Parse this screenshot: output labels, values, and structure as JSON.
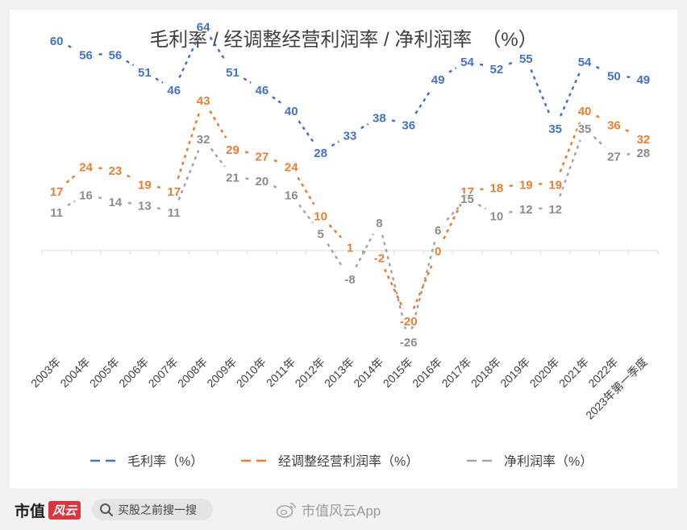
{
  "chart_data": {
    "type": "line",
    "title": "毛利率 / 经调整经营利润率 / 净利润率　（%）",
    "categories": [
      "2003年",
      "2004年",
      "2005年",
      "2006年",
      "2007年",
      "2008年",
      "2009年",
      "2010年",
      "2011年",
      "2012年",
      "2013年",
      "2014年",
      "2015年",
      "2016年",
      "2017年",
      "2018年",
      "2019年",
      "2020年",
      "2021年",
      "2022年",
      "2023年第一季度"
    ],
    "series": [
      {
        "name": "毛利率（%）",
        "color": "#4472c4",
        "values": [
          60,
          56,
          56,
          51,
          46,
          64,
          51,
          46,
          40,
          28,
          33,
          38,
          36,
          49,
          54,
          52,
          55,
          35,
          54,
          50,
          49
        ]
      },
      {
        "name": "经调整经营利润率（%）",
        "color": "#ed7d31",
        "values": [
          17,
          24,
          23,
          19,
          17,
          43,
          29,
          27,
          24,
          10,
          1,
          -2,
          -20,
          0,
          17,
          18,
          19,
          19,
          40,
          36,
          32
        ]
      },
      {
        "name": "净利润率（%）",
        "color": "#a5a5a5",
        "values": [
          11,
          16,
          14,
          13,
          11,
          32,
          21,
          20,
          16,
          5,
          -8,
          8,
          -26,
          6,
          15,
          10,
          12,
          12,
          35,
          27,
          28
        ]
      }
    ],
    "ylim": [
      -30,
      70
    ],
    "legend_position": "bottom"
  },
  "footer": {
    "brand": "市值",
    "brand_mark": "风云",
    "search_text": "买股之前搜一搜",
    "weibo_text": "市值风云App"
  }
}
